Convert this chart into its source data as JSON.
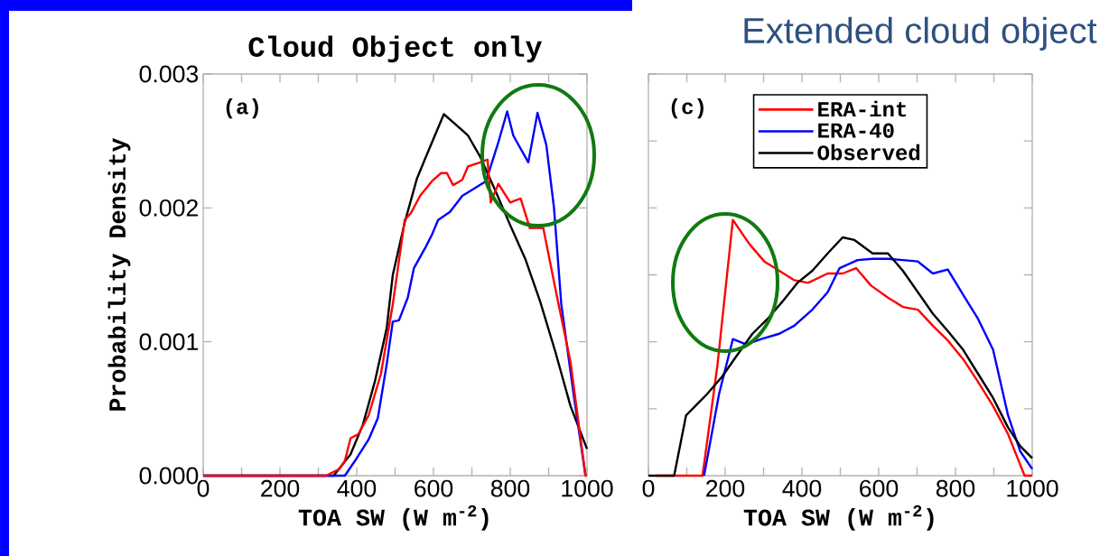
{
  "chart_data": [
    {
      "type": "line",
      "title": "Cloud Object only",
      "ylabel": "Probability Density",
      "xlabel": "TOA SW (W m$^{-2}$)",
      "annotations": [
        "(a)"
      ],
      "xlim": [
        0,
        1000
      ],
      "ylim": [
        0,
        0.003
      ],
      "xticks": [
        0,
        {
          "value": 100,
          "label": null
        },
        200,
        {
          "value": 300,
          "label": null
        },
        400,
        {
          "value": 500,
          "label": null
        },
        600,
        {
          "value": 700,
          "label": null
        },
        800,
        {
          "value": 900,
          "label": null
        },
        1000
      ],
      "yticks": [
        {
          "value": 0,
          "label": "0.000"
        },
        {
          "value": 0.001,
          "label": "0.001"
        },
        {
          "value": 0.002,
          "label": "0.002"
        },
        {
          "value": 0.003,
          "label": "0.003"
        }
      ],
      "series": [
        {
          "color": "#000000",
          "x": [
            0,
            340,
            384,
            416,
            447,
            478,
            494,
            525,
            557,
            580,
            627,
            659,
            690,
            722,
            761,
            800,
            839,
            878,
            918,
            957,
            1000
          ],
          "values": [
            0,
            0,
            0.00016,
            0.00038,
            0.0007,
            0.0011,
            0.0015,
            0.00189,
            0.00222,
            0.00238,
            0.0027,
            0.00262,
            0.00254,
            0.00238,
            0.00213,
            0.00187,
            0.00162,
            0.0013,
            0.00092,
            0.00052,
            0.0002
          ]
        },
        {
          "color": "#0000ff",
          "x": [
            0,
            350,
            369,
            400,
            431,
            455,
            478,
            494,
            510,
            533,
            549,
            580,
            596,
            612,
            643,
            675,
            698,
            737,
            769,
            792,
            808,
            847,
            871,
            894,
            914,
            933,
            965,
            996
          ],
          "values": [
            0,
            0,
            0,
            0.00013,
            0.00027,
            0.00043,
            0.00083,
            0.00115,
            0.00116,
            0.00133,
            0.00155,
            0.00171,
            0.0018,
            0.00191,
            0.00197,
            0.00209,
            0.00213,
            0.0022,
            0.00249,
            0.00272,
            0.00254,
            0.00234,
            0.00271,
            0.00247,
            0.002,
            0.00128,
            0.00061,
            0
          ]
        },
        {
          "color": "#ff0000",
          "x": [
            0,
            320,
            355,
            369,
            384,
            404,
            431,
            463,
            494,
            525,
            541,
            565,
            596,
            620,
            635,
            651,
            675,
            690,
            722,
            741,
            749,
            769,
            800,
            827,
            851,
            886,
            918,
            957,
            996,
            1000
          ],
          "values": [
            0,
            0,
            5e-05,
            0.00011,
            0.00028,
            0.00031,
            0.00045,
            0.00076,
            0.00128,
            0.00191,
            0.00196,
            0.00209,
            0.0022,
            0.00226,
            0.00226,
            0.00217,
            0.00221,
            0.00231,
            0.00234,
            0.00236,
            0.00204,
            0.00218,
            0.00204,
            0.00207,
            0.00185,
            0.00185,
            0.00139,
            0.00085,
            0,
            0
          ]
        }
      ]
    },
    {
      "type": "line",
      "title": "Extended cloud object",
      "xlabel": "TOA SW (W m$^{-2}$)",
      "annotations": [
        "(c)"
      ],
      "legend": "top",
      "tick_labels": "x",
      "xlim": [
        0,
        1000
      ],
      "ylim": [
        0,
        0.003
      ],
      "xticks": [
        0,
        {
          "value": 100,
          "label": null
        },
        200,
        {
          "value": 300,
          "label": null
        },
        400,
        {
          "value": 500,
          "label": null
        },
        600,
        {
          "value": 700,
          "label": null
        },
        800,
        {
          "value": 900,
          "label": null
        },
        1000
      ],
      "yticks": [
        {
          "value": 0,
          "label": null
        },
        {
          "value": 0.0005,
          "label": null
        },
        {
          "value": 0.001,
          "label": null
        },
        {
          "value": 0.0015,
          "label": null
        },
        {
          "value": 0.002,
          "label": null
        },
        {
          "value": 0.0025,
          "label": null
        },
        {
          "value": 0.003,
          "label": null
        }
      ],
      "series": [
        {
          "name": "ERA-int",
          "color": "#ff0000",
          "x": [
            20,
            141,
            180,
            220,
            263,
            302,
            341,
            380,
            416,
            467,
            506,
            541,
            580,
            624,
            663,
            702,
            741,
            780,
            820,
            859,
            898,
            937,
            980,
            1000
          ],
          "values": [
            0,
            0,
            0.00083,
            0.00191,
            0.00173,
            0.0016,
            0.00153,
            0.00146,
            0.00144,
            0.00151,
            0.00151,
            0.00155,
            0.00142,
            0.00133,
            0.00126,
            0.00124,
            0.00112,
            0.00101,
            0.00087,
            0.0007,
            0.00052,
            0.00031,
            0,
            0
          ]
        },
        {
          "name": "ERA-40",
          "color": "#0000ff",
          "x": [
            145,
            184,
            220,
            255,
            294,
            341,
            380,
            427,
            467,
            498,
            545,
            584,
            624,
            663,
            702,
            741,
            780,
            820,
            859,
            898,
            937,
            969,
            1000
          ],
          "values": [
            0,
            0.00061,
            0.00102,
            0.00098,
            0.00102,
            0.00106,
            0.00112,
            0.00124,
            0.00137,
            0.00155,
            0.00161,
            0.00162,
            0.00162,
            0.00161,
            0.0016,
            0.00151,
            0.00154,
            0.00135,
            0.00117,
            0.00094,
            0.00045,
            0.00018,
            5e-05
          ]
        },
        {
          "name": "Observed",
          "color": "#000000",
          "x": [
            0,
            67,
            98,
            122,
            153,
            192,
            231,
            271,
            310,
            349,
            388,
            427,
            467,
            506,
            537,
            584,
            624,
            663,
            702,
            741,
            780,
            820,
            859,
            898,
            937,
            969,
            1000
          ],
          "values": [
            0,
            0,
            0.00045,
            0.00052,
            0.00061,
            0.00074,
            0.0009,
            0.00106,
            0.00117,
            0.0013,
            0.00144,
            0.00153,
            0.00166,
            0.00178,
            0.00176,
            0.00166,
            0.00166,
            0.00153,
            0.00137,
            0.00121,
            0.00108,
            0.00094,
            0.00076,
            0.00058,
            0.00036,
            0.00022,
            0.00013
          ]
        }
      ]
    }
  ]
}
